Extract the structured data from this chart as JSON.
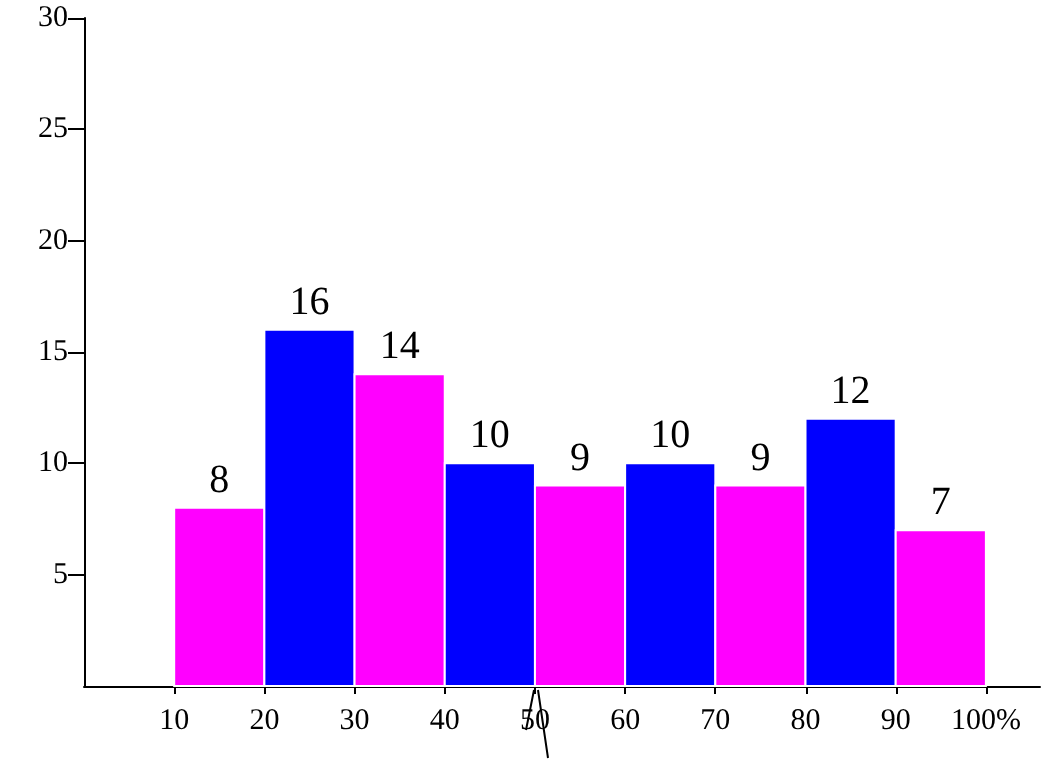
{
  "chart_data": {
    "type": "histogram",
    "bins": [
      10,
      20,
      30,
      40,
      50,
      60,
      70,
      80,
      90,
      100
    ],
    "values": [
      8,
      16,
      14,
      10,
      9,
      10,
      9,
      12,
      7
    ],
    "colors": [
      "#ff00ff",
      "#0000ff",
      "#ff00ff",
      "#0000ff",
      "#ff00ff",
      "#0000ff",
      "#ff00ff",
      "#0000ff",
      "#ff00ff"
    ],
    "xlim": [
      0,
      106
    ],
    "xticks": [
      10,
      20,
      30,
      40,
      50,
      60,
      70,
      80,
      90,
      {
        "value": 100,
        "label": "100%"
      }
    ],
    "ylim": [
      0,
      30
    ],
    "yticks": [
      5,
      10,
      15,
      20,
      25,
      30
    ],
    "data_labels": true
  }
}
